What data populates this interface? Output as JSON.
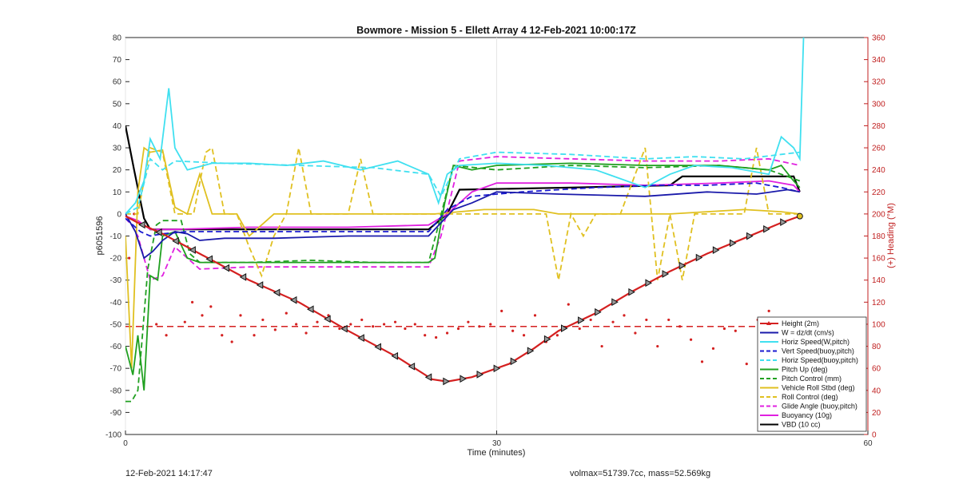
{
  "chart_data": {
    "type": "line",
    "title": "Bowmore - Mission 5 - Ellett Array 4 12-Feb-2021 10:00:17Z",
    "xlabel": "Time (minutes)",
    "ylabel": "p6051596",
    "y2label": "(+) Heading (°M)",
    "xlim": [
      0,
      60
    ],
    "ylim": [
      -100,
      80
    ],
    "y2lim": [
      0,
      360
    ],
    "xticks": [
      "0",
      "30",
      "60"
    ],
    "yticks": [
      "80",
      "70",
      "60",
      "50",
      "40",
      "30",
      "20",
      "10",
      "0",
      "-10",
      "-20",
      "-30",
      "-40",
      "-50",
      "-60",
      "-70",
      "-80",
      "-90",
      "-100"
    ],
    "y2ticks": [
      "360",
      "340",
      "320",
      "300",
      "280",
      "260",
      "240",
      "220",
      "200",
      "180",
      "160",
      "140",
      "120",
      "100",
      "80",
      "60",
      "40",
      "20",
      "0"
    ],
    "grid": "vertical only",
    "legend_position": "bottom-right",
    "colors": {
      "height": "#d42020",
      "w": "#1a1aaa",
      "horiz": "#40e0f0",
      "vert_buoy": "#1a1ad0",
      "horiz_buoy": "#40e0f0",
      "pitch_up": "#20a020",
      "pitch_ctrl": "#20a020",
      "roll": "#e0c020",
      "roll_ctrl": "#e0c020",
      "glide": "#e020e0",
      "buoyancy": "#e020e0",
      "vbd": "#000000"
    },
    "series": [
      {
        "name": "Height (2m)",
        "key": "height",
        "style": "solid",
        "marker": "triangle",
        "x": [
          0,
          1,
          3,
          6,
          10,
          14,
          18,
          22,
          24.8,
          26,
          28,
          31,
          33,
          35,
          38,
          41,
          44,
          47,
          50,
          53,
          54.5
        ],
        "values": [
          -1,
          -4,
          -9,
          -18,
          -30,
          -40,
          -53,
          -65,
          -75,
          -76,
          -74,
          -68,
          -61,
          -53,
          -45,
          -35,
          -26,
          -18,
          -11,
          -4,
          -1
        ]
      },
      {
        "name": "W = dz/dt (cm/s)",
        "key": "w",
        "style": "solid",
        "x": [
          0,
          0.8,
          1.5,
          2.2,
          3,
          4,
          5,
          6,
          8,
          12,
          18,
          24.5,
          25.5,
          26.5,
          28,
          30,
          35,
          42,
          47,
          51,
          53.5,
          54.5
        ],
        "values": [
          0,
          -8,
          -20,
          -17,
          -12,
          -8,
          -9,
          -12,
          -11,
          -11,
          -10,
          -10,
          -4,
          2,
          5,
          10,
          9,
          8,
          10,
          9,
          11,
          10
        ]
      },
      {
        "name": "Horiz Speed(W,pitch)",
        "key": "horiz",
        "style": "solid",
        "x": [
          0,
          0.8,
          1.5,
          2,
          2.8,
          3.5,
          4,
          5,
          7,
          10,
          13,
          16,
          19,
          22,
          24.5,
          25.3,
          26,
          27,
          30,
          34,
          38,
          42,
          44,
          46,
          49,
          52,
          53,
          54,
          54.5,
          54.8
        ],
        "values": [
          0,
          5,
          15,
          34,
          25,
          57,
          30,
          20,
          23,
          23,
          22,
          24,
          20,
          24,
          18,
          5,
          18,
          22,
          23,
          22,
          20,
          12,
          18,
          22,
          21,
          18,
          35,
          30,
          25,
          80
        ]
      },
      {
        "name": "Vert Speed(buoy,pitch)",
        "key": "vert_buoy",
        "style": "dashed",
        "x": [
          0,
          1.2,
          2,
          3,
          5,
          10,
          18,
          24.5,
          26,
          28,
          32,
          38,
          43,
          47,
          51,
          53,
          54.5
        ],
        "values": [
          -2,
          -8,
          -10,
          -9,
          -8,
          -8,
          -8,
          -8,
          2,
          8,
          10,
          12,
          13,
          13,
          14,
          12,
          10
        ]
      },
      {
        "name": "Horiz Speed(buoy,pitch)",
        "key": "horiz_buoy",
        "style": "dashed",
        "x": [
          0,
          1,
          2,
          3,
          4,
          8,
          14,
          20,
          24.5,
          25.5,
          27,
          30,
          36,
          42,
          46,
          50,
          53,
          54.5
        ],
        "values": [
          0,
          3,
          25,
          20,
          24,
          23,
          22,
          21,
          18,
          8,
          25,
          28,
          27,
          25,
          26,
          25,
          27,
          28
        ]
      },
      {
        "name": "Pitch Up (deg)",
        "key": "pitch_up",
        "style": "solid",
        "x": [
          0,
          0.6,
          1,
          1.5,
          2,
          2.6,
          3,
          4,
          5,
          6,
          10,
          15,
          20,
          24.5,
          25,
          25.8,
          26.5,
          28,
          30,
          36,
          42,
          48,
          52,
          53,
          54,
          54.5
        ],
        "values": [
          -60,
          -73,
          -55,
          -80,
          -28,
          -30,
          -10,
          -8,
          -20,
          -22,
          -22,
          -22,
          -22,
          -22,
          -20,
          5,
          22,
          20,
          22,
          23,
          22,
          22,
          20,
          22,
          15,
          12
        ]
      },
      {
        "name": "Pitch Control (mm)",
        "key": "pitch_ctrl",
        "style": "dashed",
        "x": [
          0,
          0.5,
          1,
          1.3,
          1.8,
          2.5,
          3,
          4.5,
          5.2,
          6,
          10,
          15,
          20,
          24.5,
          25.3,
          26.5,
          30,
          36,
          42,
          48,
          52,
          54.5
        ],
        "values": [
          -85,
          -85,
          -80,
          -60,
          -25,
          -5,
          -3,
          -3,
          -18,
          -22,
          -22,
          -21,
          -22,
          -22,
          -5,
          22,
          20,
          22,
          21,
          22,
          20,
          15
        ]
      },
      {
        "name": "Vehicle Roll Stbd (deg)",
        "key": "roll",
        "style": "solid",
        "x": [
          0,
          0.5,
          1,
          1.5,
          2,
          3,
          4,
          5,
          6,
          7,
          9,
          10,
          12,
          14,
          16,
          18,
          20,
          23,
          25,
          27,
          29,
          31,
          33,
          35,
          38,
          41,
          44,
          47,
          50,
          53,
          54.5
        ],
        "values": [
          -10,
          -70,
          10,
          30,
          28,
          29,
          3,
          0,
          18,
          0,
          0,
          -10,
          0,
          0,
          0,
          0,
          0,
          0,
          0,
          1,
          2,
          2,
          2,
          0,
          0,
          0,
          0,
          1,
          2,
          1,
          0
        ]
      },
      {
        "name": "Roll Control (deg)",
        "key": "roll_ctrl",
        "style": "dashed",
        "x": [
          0,
          1,
          2,
          3,
          4,
          5.5,
          6.5,
          7,
          8,
          9,
          10,
          11,
          12,
          13,
          14,
          15,
          18,
          19,
          20,
          22,
          24,
          30,
          34,
          35,
          36,
          37,
          38,
          40,
          42,
          43,
          44,
          45,
          46,
          47,
          48,
          50,
          51,
          52,
          54.5
        ],
        "values": [
          0,
          0,
          30,
          28,
          0,
          0,
          28,
          30,
          0,
          0,
          -15,
          -28,
          -10,
          0,
          30,
          0,
          0,
          25,
          0,
          0,
          0,
          0,
          0,
          -30,
          0,
          -10,
          0,
          0,
          30,
          -30,
          0,
          -30,
          0,
          0,
          0,
          0,
          30,
          0,
          0
        ]
      },
      {
        "name": "Glide Angle (buoy,pitch)",
        "key": "glide",
        "style": "dashed",
        "x": [
          0,
          0.5,
          1,
          2,
          3,
          4,
          6,
          10,
          15,
          20,
          24.5,
          25.5,
          27,
          30,
          36,
          42,
          48,
          52,
          54.5
        ],
        "values": [
          -2,
          -5,
          -10,
          -30,
          -28,
          -15,
          -25,
          -24,
          -24,
          -24,
          -24,
          -10,
          24,
          26,
          25,
          24,
          24,
          25,
          22
        ]
      },
      {
        "name": "Buoyancy (10g)",
        "key": "buoyancy",
        "style": "solid",
        "x": [
          0,
          1,
          2,
          3,
          4,
          10,
          18,
          24.5,
          26,
          28,
          30,
          36,
          42,
          48,
          52,
          54,
          54.5
        ],
        "values": [
          -1,
          -3,
          -7,
          -7,
          -7,
          -6,
          -6,
          -5,
          0,
          10,
          14,
          14,
          13,
          14,
          15,
          13,
          10
        ]
      },
      {
        "name": "VBD (10 cc)",
        "key": "vbd",
        "style": "solid",
        "x": [
          0,
          0.7,
          1.5,
          2,
          3,
          10,
          20,
          24.5,
          26,
          27,
          36,
          44,
          45,
          48,
          54,
          54.5
        ],
        "values": [
          40,
          20,
          -2,
          -7,
          -7,
          -7,
          -7,
          -7,
          0,
          11,
          12,
          13,
          17,
          17,
          17,
          10
        ]
      }
    ],
    "heading_series": {
      "name": "Heading dots",
      "key": "height",
      "axis": "right",
      "mean_line": 98,
      "x": [
        0.3,
        0.7,
        1.1,
        2.5,
        3.3,
        4.8,
        5.4,
        6.2,
        6.9,
        7.8,
        8.6,
        9.3,
        10.4,
        11.1,
        12.1,
        13,
        13.8,
        14.6,
        15.5,
        16.4,
        17.3,
        18.2,
        19.1,
        20,
        20.9,
        21.8,
        22.6,
        23.4,
        24.2,
        25.1,
        26,
        26.9,
        27.7,
        28.6,
        29.5,
        30.4,
        31.3,
        32.2,
        33.1,
        34,
        34.9,
        35.8,
        36.7,
        37.6,
        38.5,
        39.4,
        40.3,
        41.2,
        42.1,
        43,
        43.9,
        44.8,
        45.7,
        46.6,
        47.5,
        48.4,
        49.3,
        50.2,
        51.1,
        52,
        53
      ],
      "values": [
        160,
        200,
        215,
        100,
        90,
        102,
        120,
        108,
        116,
        90,
        84,
        108,
        90,
        104,
        95,
        110,
        100,
        92,
        102,
        108,
        96,
        100,
        104,
        98,
        100,
        102,
        96,
        100,
        90,
        88,
        92,
        96,
        102,
        98,
        100,
        112,
        94,
        90,
        108,
        84,
        90,
        118,
        96,
        104,
        80,
        102,
        108,
        92,
        104,
        80,
        104,
        98,
        86,
        66,
        78,
        96,
        94,
        64,
        104,
        112,
        104
      ]
    },
    "legend": [
      "Height (2m)",
      "W = dz/dt (cm/s)",
      "Horiz Speed(W,pitch)",
      "Vert Speed(buoy,pitch)",
      "Horiz Speed(buoy,pitch)",
      "Pitch Up (deg)",
      "Pitch Control (mm)",
      "Vehicle Roll Stbd (deg)",
      "Roll Control (deg)",
      "Glide Angle (buoy,pitch)",
      "Buoyancy (10g)",
      "VBD (10 cc)"
    ]
  },
  "footer": {
    "left": "12-Feb-2021 14:17:47",
    "right": "volmax=51739.7cc, mass=52.569kg"
  }
}
